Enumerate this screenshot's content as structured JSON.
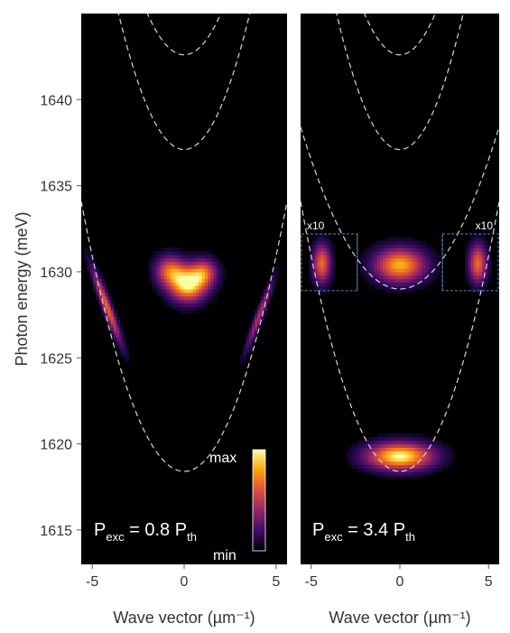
{
  "chart_data": [
    {
      "type": "heatmap",
      "panel": "left",
      "xlabel": "Wave vector (µm⁻¹)",
      "ylabel": "Photon energy (meV)",
      "xlim": [
        -5.6,
        5.6
      ],
      "ylim": [
        1613,
        1645
      ],
      "xticks": [
        -5,
        0,
        5
      ],
      "yticks": [
        1615,
        1620,
        1625,
        1630,
        1635,
        1640
      ],
      "annotation": {
        "main": "P",
        "sub1": "exc",
        "mid": " = 0.8 P",
        "sub2": "th"
      },
      "colorbar": {
        "max_label": "max",
        "min_label": "min",
        "colors": [
          "#000004",
          "#420a68",
          "#932667",
          "#dd513a",
          "#fca50a",
          "#fcffa4"
        ]
      },
      "dispersion_curves": [
        {
          "k0": 0,
          "E0": 1618.4,
          "a": 0.5
        },
        {
          "k0": 0,
          "E0": 1637.1,
          "a": 0.62
        },
        {
          "k0": 0,
          "E0": 1642.6,
          "a": 0.6
        }
      ],
      "emission_blobs": [
        {
          "k": 0.2,
          "E": 1629.3,
          "sk": 0.7,
          "sE": 0.7,
          "amp": 1.0
        },
        {
          "k": -0.8,
          "E": 1630.1,
          "sk": 0.55,
          "sE": 0.6,
          "amp": 0.6
        },
        {
          "k": 1.1,
          "E": 1630.0,
          "sk": 0.5,
          "sE": 0.55,
          "amp": 0.55
        },
        {
          "k": -4.2,
          "E": 1628.0,
          "sk": 0.18,
          "sE": 1.5,
          "amp": 0.7,
          "tilt": -0.35
        },
        {
          "k": 4.1,
          "E": 1627.5,
          "sk": 0.15,
          "sE": 1.4,
          "amp": 0.5,
          "tilt": 0.35
        }
      ]
    },
    {
      "type": "heatmap",
      "panel": "right",
      "xlabel": "Wave vector (µm⁻¹)",
      "xlim": [
        -5.6,
        5.6
      ],
      "ylim": [
        1613,
        1645
      ],
      "xticks": [
        -5,
        0,
        5
      ],
      "annotation": {
        "main": "P",
        "sub1": "exc",
        "mid": " = 3.4 P",
        "sub2": "th"
      },
      "insets": [
        {
          "label": "x10",
          "k_range": [
            -5.6,
            -2.4
          ],
          "E_range": [
            1628.9,
            1632.2
          ]
        },
        {
          "label": "x10",
          "k_range": [
            2.4,
            5.6
          ],
          "E_range": [
            1628.9,
            1632.2
          ]
        }
      ],
      "dispersion_curves": [
        {
          "k0": 0,
          "E0": 1618.4,
          "a": 0.5
        },
        {
          "k0": 0,
          "E0": 1637.1,
          "a": 0.62
        },
        {
          "k0": 0,
          "E0": 1642.6,
          "a": 0.6
        },
        {
          "k0": 0,
          "E0": 1629.0,
          "a": 0.3
        }
      ],
      "emission_blobs": [
        {
          "k": 0.0,
          "E": 1619.3,
          "sk": 1.3,
          "sE": 0.55,
          "amp": 1.0
        },
        {
          "k": 0.0,
          "E": 1630.4,
          "sk": 1.0,
          "sE": 0.7,
          "amp": 0.85
        },
        {
          "k": -4.4,
          "E": 1630.5,
          "sk": 0.35,
          "sE": 0.8,
          "amp": 0.7
        },
        {
          "k": 4.4,
          "E": 1630.5,
          "sk": 0.35,
          "sE": 0.8,
          "amp": 0.7
        }
      ]
    }
  ]
}
